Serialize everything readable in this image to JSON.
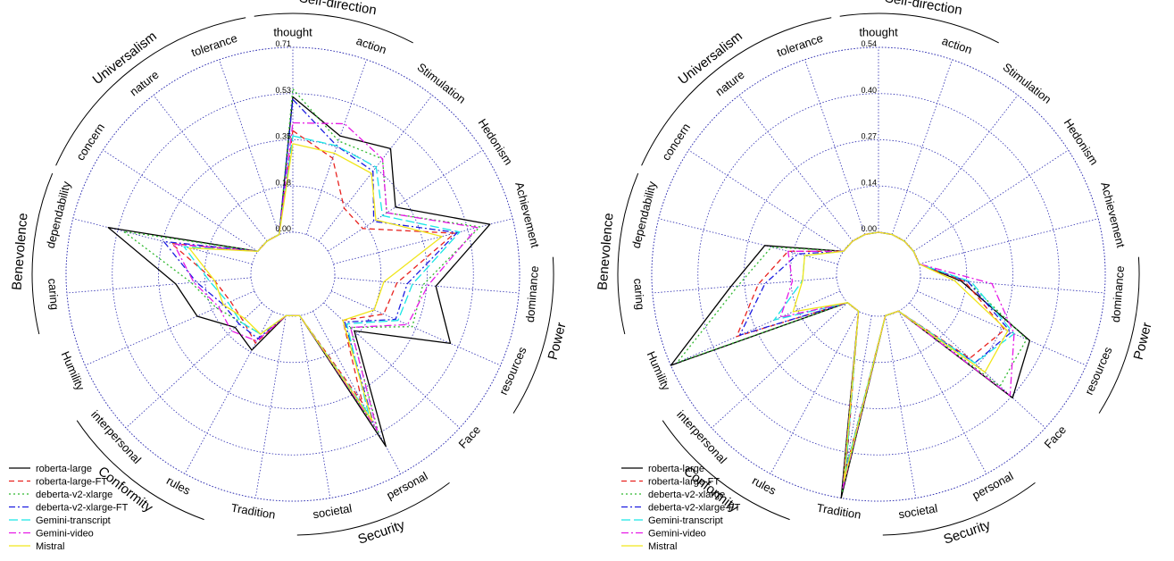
{
  "chart_data": [
    {
      "type": "radar",
      "rmax": 0.71,
      "tick_labels": [
        "0.00",
        "0.18",
        "0.35",
        "0.53",
        "0.71"
      ],
      "tick_values": [
        0,
        0.1775,
        0.355,
        0.5325,
        0.71
      ],
      "grid": true,
      "legend_position": "bottom-left",
      "labels": [
        "thought",
        "action",
        "Stimulation",
        "Hedonism",
        "Achievement",
        "dominance",
        "resources",
        "Face",
        "personal",
        "societal",
        "Tradition",
        "rules",
        "interpersonal",
        "Humility",
        "caring",
        "dependability",
        "concern",
        "nature",
        "tolerance"
      ],
      "groups": [
        {
          "label": "Self-direction",
          "spokes": [
            0,
            1
          ]
        },
        {
          "label": "Power",
          "spokes": [
            5,
            6
          ]
        },
        {
          "label": "Security",
          "spokes": [
            8,
            9
          ]
        },
        {
          "label": "Conformity",
          "spokes": [
            11,
            12
          ]
        },
        {
          "label": "Benevolence",
          "spokes": [
            14,
            15
          ]
        },
        {
          "label": "Universalism",
          "spokes": [
            16,
            17,
            18
          ]
        }
      ],
      "series": [
        {
          "name": "roberta-large",
          "values": [
            0.52,
            0.4,
            0.45,
            0.31,
            0.62,
            0.39,
            0.5,
            0.16,
            0.59,
            0.0,
            0.0,
            0.17,
            0.14,
            0.24,
            0.29,
            0.57,
            0.0,
            0.0,
            0.0
          ]
        },
        {
          "name": "roberta-large-FT",
          "values": [
            0.39,
            0.31,
            0.16,
            0.16,
            0.48,
            0.24,
            0.22,
            0.1,
            0.4,
            0.0,
            0.0,
            0.14,
            0.1,
            0.1,
            0.14,
            0.32,
            0.0,
            0.0,
            0.0
          ]
        },
        {
          "name": "deberta-v2-xlarge",
          "values": [
            0.55,
            0.38,
            0.4,
            0.27,
            0.58,
            0.34,
            0.34,
            0.14,
            0.53,
            0.0,
            0.0,
            0.1,
            0.11,
            0.16,
            0.23,
            0.51,
            0.0,
            0.0,
            0.0
          ]
        },
        {
          "name": "deberta-v2-xlarge-FT",
          "values": [
            0.51,
            0.36,
            0.34,
            0.21,
            0.49,
            0.28,
            0.27,
            0.11,
            0.49,
            0.0,
            0.0,
            0.12,
            0.12,
            0.13,
            0.21,
            0.35,
            0.0,
            0.0,
            0.0
          ]
        },
        {
          "name": "Gemini-transcript",
          "values": [
            0.37,
            0.36,
            0.36,
            0.25,
            0.5,
            0.3,
            0.28,
            0.12,
            0.45,
            0.0,
            0.0,
            0.1,
            0.11,
            0.11,
            0.16,
            0.27,
            0.0,
            0.0,
            0.0
          ]
        },
        {
          "name": "Gemini-video",
          "values": [
            0.42,
            0.45,
            0.4,
            0.27,
            0.57,
            0.36,
            0.32,
            0.14,
            0.52,
            0.0,
            0.0,
            0.13,
            0.16,
            0.15,
            0.22,
            0.31,
            0.0,
            0.0,
            0.0
          ]
        },
        {
          "name": "Mistral",
          "values": [
            0.34,
            0.33,
            0.33,
            0.22,
            0.43,
            0.19,
            0.18,
            0.1,
            0.48,
            0.0,
            0.0,
            0.1,
            0.09,
            0.13,
            0.14,
            0.25,
            0.0,
            0.0,
            0.0
          ]
        }
      ]
    },
    {
      "type": "radar",
      "rmax": 0.54,
      "tick_labels": [
        "0.00",
        "0.14",
        "0.27",
        "0.40",
        "0.54"
      ],
      "tick_values": [
        0,
        0.135,
        0.27,
        0.405,
        0.54
      ],
      "grid": true,
      "legend_position": "bottom-left",
      "labels": [
        "thought",
        "action",
        "Stimulation",
        "Hedonism",
        "Achievement",
        "dominance",
        "resources",
        "Face",
        "personal",
        "societal",
        "Tradition",
        "rules",
        "interpersonal",
        "Humility",
        "caring",
        "dependability",
        "concern",
        "nature",
        "tolerance"
      ],
      "groups": [
        {
          "label": "Self-direction",
          "spokes": [
            0,
            1
          ]
        },
        {
          "label": "Power",
          "spokes": [
            5,
            6
          ]
        },
        {
          "label": "Security",
          "spokes": [
            8,
            9
          ]
        },
        {
          "label": "Conformity",
          "spokes": [
            11,
            12
          ]
        },
        {
          "label": "Benevolence",
          "spokes": [
            14,
            15
          ]
        },
        {
          "label": "Universalism",
          "spokes": [
            16,
            17,
            18
          ]
        }
      ],
      "series": [
        {
          "name": "roberta-large",
          "values": [
            0.0,
            0.0,
            0.0,
            0.0,
            0.0,
            0.12,
            0.36,
            0.41,
            0.0,
            0.0,
            0.54,
            0.0,
            0.0,
            0.54,
            0.31,
            0.22,
            0.0,
            0.0,
            0.0
          ]
        },
        {
          "name": "roberta-large-FT",
          "values": [
            0.0,
            0.0,
            0.0,
            0.0,
            0.0,
            0.13,
            0.28,
            0.24,
            0.0,
            0.0,
            0.45,
            0.0,
            0.0,
            0.33,
            0.23,
            0.15,
            0.0,
            0.0,
            0.0
          ]
        },
        {
          "name": "deberta-v2-xlarge",
          "values": [
            0.0,
            0.0,
            0.0,
            0.0,
            0.0,
            0.14,
            0.35,
            0.36,
            0.0,
            0.0,
            0.52,
            0.0,
            0.0,
            0.52,
            0.29,
            0.2,
            0.0,
            0.0,
            0.0
          ]
        },
        {
          "name": "deberta-v2-xlarge-FT",
          "values": [
            0.0,
            0.0,
            0.0,
            0.0,
            0.0,
            0.14,
            0.3,
            0.26,
            0.0,
            0.0,
            0.47,
            0.0,
            0.0,
            0.32,
            0.21,
            0.12,
            0.0,
            0.0,
            0.0
          ]
        },
        {
          "name": "Gemini-transcript",
          "values": [
            0.0,
            0.0,
            0.0,
            0.0,
            0.0,
            0.15,
            0.31,
            0.26,
            0.0,
            0.0,
            0.46,
            0.0,
            0.0,
            0.21,
            0.1,
            0.1,
            0.0,
            0.0,
            0.0
          ]
        },
        {
          "name": "Gemini-video",
          "values": [
            0.0,
            0.0,
            0.0,
            0.0,
            0.0,
            0.21,
            0.31,
            0.4,
            0.0,
            0.0,
            0.51,
            0.0,
            0.0,
            0.19,
            0.13,
            0.15,
            0.0,
            0.0,
            0.0
          ]
        },
        {
          "name": "Mistral",
          "values": [
            0.0,
            0.0,
            0.0,
            0.0,
            0.0,
            0.1,
            0.29,
            0.3,
            0.0,
            0.0,
            0.49,
            0.0,
            0.0,
            0.15,
            0.1,
            0.1,
            0.0,
            0.0,
            0.0
          ]
        }
      ]
    }
  ],
  "legend": {
    "entries": [
      "roberta-large",
      "roberta-large-FT",
      "deberta-v2-xlarge",
      "deberta-v2-xlarge-FT",
      "Gemini-transcript",
      "Gemini-video",
      "Mistral"
    ]
  },
  "colors": {
    "roberta-large": "#000000",
    "roberta-large-FT": "#e8221f",
    "deberta-v2-xlarge": "#2db82d",
    "deberta-v2-xlarge-FT": "#1c1ce0",
    "Gemini-transcript": "#19e6e6",
    "Gemini-video": "#e619e6",
    "Mistral": "#f0e61c",
    "grid": "#2b2bb0"
  },
  "dashes": {
    "roberta-large": "",
    "roberta-large-FT": "6,4",
    "deberta-v2-xlarge": "2,3",
    "deberta-v2-xlarge-FT": "7,3,2,3",
    "Gemini-transcript": "10,4",
    "Gemini-video": "8,3,2,3",
    "Mistral": ""
  }
}
